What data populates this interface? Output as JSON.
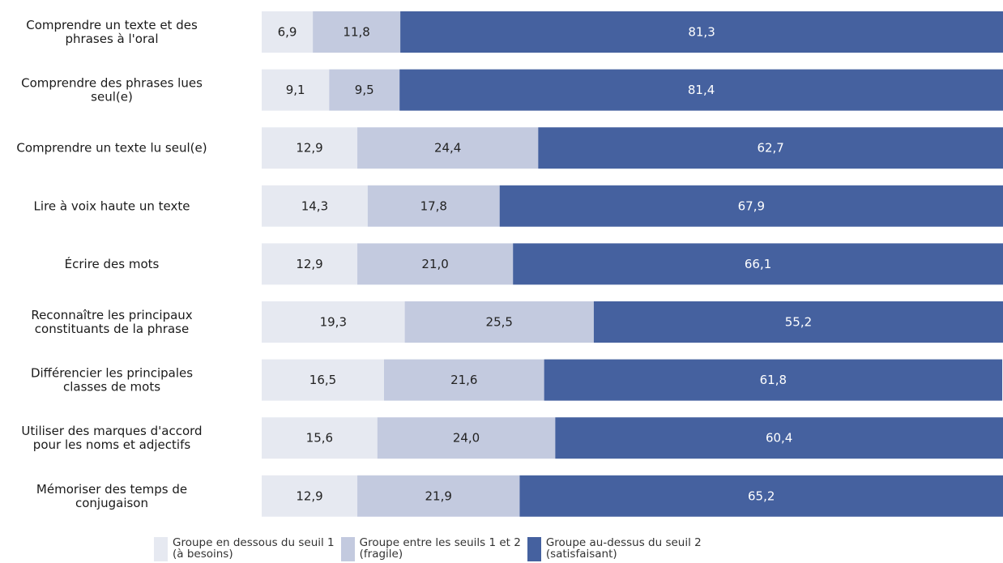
{
  "chart_data": {
    "type": "bar",
    "orientation": "horizontal",
    "stacked": true,
    "categories": [
      "Comprendre un texte et des\nphrases à l'oral",
      "Comprendre des phrases lues\nseul(e)",
      "Comprendre un texte lu seul(e)",
      "Lire à voix haute un texte",
      "Écrire des mots",
      "Reconnaître les principaux\nconstituants de la phrase",
      "Différencier les principales\nclasses de mots",
      "Utiliser des marques d'accord\npour les noms et adjectifs",
      "Mémoriser des temps de\nconjugaison"
    ],
    "series": [
      {
        "name": "Groupe en dessous du seuil 1\n(à besoins)",
        "color": "#e6e9f1",
        "values": [
          6.9,
          9.1,
          12.9,
          14.3,
          12.9,
          19.3,
          16.5,
          15.6,
          12.9
        ],
        "labels": [
          "6,9",
          "9,1",
          "12,9",
          "14,3",
          "12,9",
          "19,3",
          "16,5",
          "15,6",
          "12,9"
        ]
      },
      {
        "name": "Groupe entre les seuils 1 et 2\n(fragile)",
        "color": "#c3cadf",
        "values": [
          11.8,
          9.5,
          24.4,
          17.8,
          21.0,
          25.5,
          21.6,
          24.0,
          21.9
        ],
        "labels": [
          "11,8",
          "9,5",
          "24,4",
          "17,8",
          "21,0",
          "25,5",
          "21,6",
          "24,0",
          "21,9"
        ]
      },
      {
        "name": "Groupe au-dessus du seuil 2\n(satisfaisant)",
        "color": "#45619f",
        "values": [
          81.3,
          81.4,
          62.7,
          67.9,
          66.1,
          55.2,
          61.8,
          60.4,
          65.2
        ],
        "labels": [
          "81,3",
          "81,4",
          "62,7",
          "67,9",
          "66,1",
          "55,2",
          "61,8",
          "60,4",
          "65,2"
        ]
      }
    ],
    "xlim": [
      0,
      100
    ],
    "legend_position": "bottom"
  }
}
